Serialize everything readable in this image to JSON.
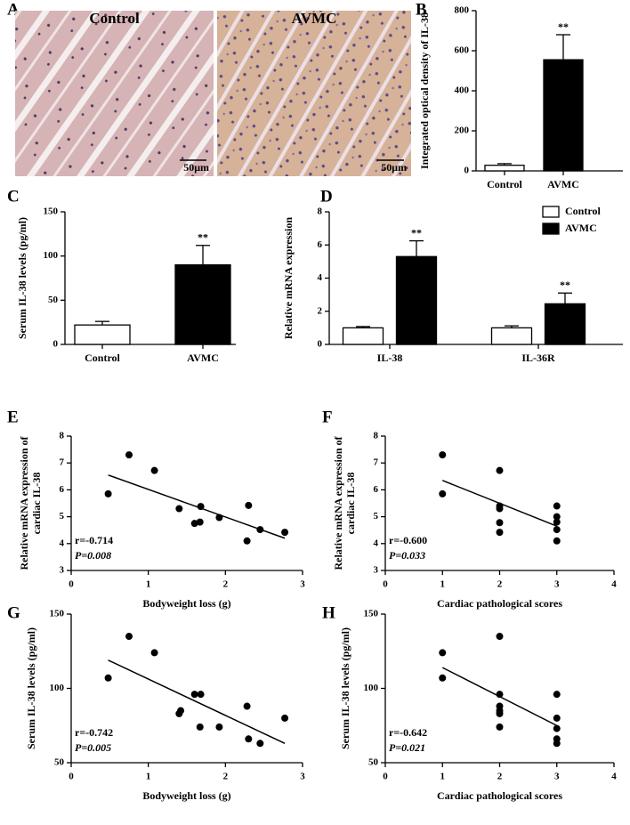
{
  "chart_data": [
    {
      "type": "image",
      "label": "A",
      "titles": [
        "Control",
        "AVMC"
      ],
      "scale_bars": [
        "50μm",
        "50μm"
      ]
    },
    {
      "type": "bar",
      "label": "B",
      "ylabel": [
        "Integrated optical density of IL-38"
      ],
      "categories": [
        "Control",
        "AVMC"
      ],
      "values": [
        28,
        555
      ],
      "errors": [
        8,
        125
      ],
      "colors": [
        "#ffffff",
        "#000000"
      ],
      "significance": [
        null,
        "**"
      ],
      "ylim": [
        0,
        800
      ],
      "yticks": [
        0,
        200,
        400,
        600,
        800
      ]
    },
    {
      "type": "bar",
      "label": "C",
      "ylabel": [
        "Serum IL-38 levels (pg/ml)"
      ],
      "categories": [
        "Control",
        "AVMC"
      ],
      "values": [
        22,
        90
      ],
      "errors": [
        4,
        22
      ],
      "colors": [
        "#ffffff",
        "#000000"
      ],
      "significance": [
        null,
        "**"
      ],
      "ylim": [
        0,
        150
      ],
      "yticks": [
        0,
        50,
        100,
        150
      ]
    },
    {
      "type": "grouped-bar",
      "label": "D",
      "ylabel": [
        "Relative mRNA expression"
      ],
      "categories": [
        "IL-38",
        "IL-36R"
      ],
      "series": [
        {
          "name": "Control",
          "color": "#ffffff",
          "values": [
            1.0,
            1.0
          ],
          "errors": [
            0.08,
            0.12
          ],
          "significance": [
            null,
            null
          ]
        },
        {
          "name": "AVMC",
          "color": "#000000",
          "values": [
            5.3,
            2.45
          ],
          "errors": [
            0.95,
            0.65
          ],
          "significance": [
            "**",
            "**"
          ]
        }
      ],
      "legend": "top-right",
      "ylim": [
        0,
        8
      ],
      "yticks": [
        0,
        2,
        4,
        6,
        8
      ]
    },
    {
      "type": "scatter",
      "label": "E",
      "xlabel": "Bodyweight loss (g)",
      "ylabel": [
        "Relative mRNA expression of",
        "cardiac IL-38"
      ],
      "x": [
        0.48,
        0.75,
        1.08,
        1.4,
        1.6,
        1.67,
        1.68,
        1.92,
        2.28,
        2.3,
        2.45,
        2.77
      ],
      "values": [
        5.85,
        7.3,
        6.72,
        5.3,
        4.75,
        4.8,
        5.38,
        4.97,
        4.1,
        5.42,
        4.52,
        4.42
      ],
      "fit": {
        "x": [
          0.48,
          2.77
        ],
        "y": [
          6.55,
          4.2
        ]
      },
      "annotations": [
        "r=-0.714",
        "P=0.008"
      ],
      "xlim": [
        0,
        3
      ],
      "xticks": [
        0,
        1,
        2,
        3
      ],
      "ylim": [
        3,
        8
      ],
      "yticks": [
        3,
        4,
        5,
        6,
        7,
        8
      ]
    },
    {
      "type": "scatter",
      "label": "F",
      "xlabel": "Cardiac pathological scores",
      "ylabel": [
        "Relative mRNA expression of",
        "cardiac IL-38"
      ],
      "x": [
        1,
        1,
        2,
        2,
        2,
        2,
        2,
        3,
        3,
        3,
        3,
        3
      ],
      "values": [
        7.3,
        5.85,
        6.72,
        5.4,
        5.3,
        4.78,
        4.42,
        5.4,
        5.0,
        4.8,
        4.52,
        4.1
      ],
      "fit": {
        "x": [
          1,
          3
        ],
        "y": [
          6.35,
          4.65
        ]
      },
      "annotations": [
        "r=-0.600",
        "P=0.033"
      ],
      "xlim": [
        0,
        4
      ],
      "xticks": [
        0,
        1,
        2,
        3,
        4
      ],
      "ylim": [
        3,
        8
      ],
      "yticks": [
        3,
        4,
        5,
        6,
        7,
        8
      ]
    },
    {
      "type": "scatter",
      "label": "G",
      "xlabel": "Bodyweight loss (g)",
      "ylabel": [
        "Serum IL-38 levels (pg/ml)"
      ],
      "x": [
        0.48,
        0.75,
        1.08,
        1.4,
        1.42,
        1.6,
        1.67,
        1.68,
        1.92,
        2.28,
        2.3,
        2.45,
        2.77
      ],
      "values": [
        107,
        135,
        124,
        83,
        85,
        96,
        74,
        96,
        74,
        88,
        66,
        63,
        80
      ],
      "fit": {
        "x": [
          0.48,
          2.77
        ],
        "y": [
          119,
          63
        ]
      },
      "annotations": [
        "r=-0.742",
        "P=0.005"
      ],
      "xlim": [
        0,
        3
      ],
      "xticks": [
        0,
        1,
        2,
        3
      ],
      "ylim": [
        50,
        150
      ],
      "yticks": [
        50,
        100,
        150
      ]
    },
    {
      "type": "scatter",
      "label": "H",
      "xlabel": "Cardiac pathological scores",
      "ylabel": [
        "Serum IL-38 levels (pg/ml)"
      ],
      "x": [
        1,
        1,
        2,
        2,
        2,
        2,
        2,
        2,
        3,
        3,
        3,
        3,
        3
      ],
      "values": [
        124,
        107,
        135,
        96,
        88,
        85,
        83,
        74,
        96,
        80,
        73,
        66,
        63
      ],
      "fit": {
        "x": [
          1,
          3
        ],
        "y": [
          114,
          75
        ]
      },
      "annotations": [
        "r=-0.642",
        "P=0.021"
      ],
      "xlim": [
        0,
        4
      ],
      "xticks": [
        0,
        1,
        2,
        3,
        4
      ],
      "ylim": [
        50,
        150
      ],
      "yticks": [
        50,
        100,
        150
      ]
    }
  ]
}
